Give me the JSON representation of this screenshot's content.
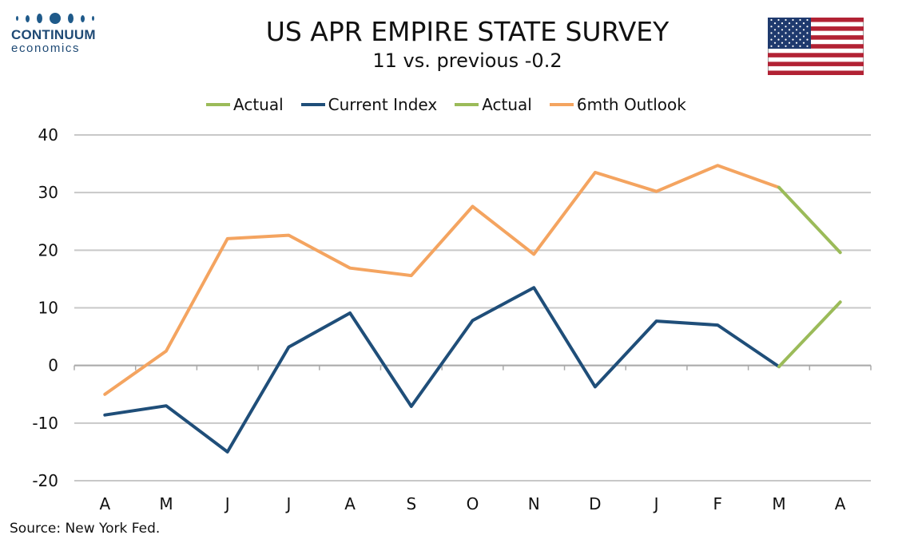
{
  "logo": {
    "name": "CONTINUUM",
    "sub": "economics"
  },
  "chart_data": {
    "type": "line",
    "title": "US APR EMPIRE STATE SURVEY",
    "subtitle": "11 vs. previous -0.2",
    "categories": [
      "A",
      "M",
      "J",
      "J",
      "A",
      "S",
      "O",
      "N",
      "D",
      "J",
      "F",
      "M",
      "A"
    ],
    "ylim": [
      -20,
      40
    ],
    "yticks": [
      -20,
      -10,
      0,
      10,
      20,
      30,
      40
    ],
    "grid": true,
    "legend_position": "top",
    "series": [
      {
        "name": "Current Index",
        "color": "#1f4e79",
        "values": [
          -8.6,
          -7,
          -15,
          3.2,
          9.1,
          -7.1,
          7.8,
          13.5,
          -3.7,
          7.7,
          7.0,
          -0.2,
          null
        ]
      },
      {
        "name": "Actual",
        "color": "#9bbb59",
        "values": [
          null,
          null,
          null,
          null,
          null,
          null,
          null,
          null,
          null,
          null,
          null,
          -0.2,
          11
        ]
      },
      {
        "name": "6mth Outlook",
        "color": "#f4a460",
        "values": [
          -5,
          2.5,
          22,
          22.6,
          16.9,
          15.6,
          27.6,
          19.3,
          33.5,
          30.2,
          34.7,
          30.9,
          null
        ]
      },
      {
        "name": "Actual",
        "color": "#9bbb59",
        "values": [
          null,
          null,
          null,
          null,
          null,
          null,
          null,
          null,
          null,
          null,
          null,
          30.9,
          19.6
        ]
      }
    ],
    "legend": [
      {
        "label": "Actual",
        "color": "#9bbb59"
      },
      {
        "label": "Current Index",
        "color": "#1f4e79"
      },
      {
        "label": "Actual",
        "color": "#9bbb59"
      },
      {
        "label": "6mth Outlook",
        "color": "#f4a460"
      }
    ],
    "source": "Source: New York Fed."
  }
}
